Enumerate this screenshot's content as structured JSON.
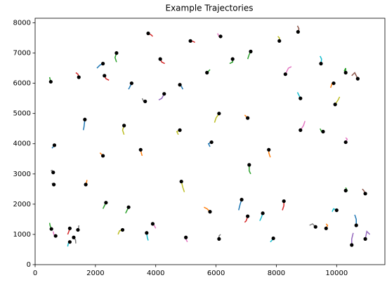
{
  "chart_data": {
    "type": "trajectory",
    "title": "Example Trajectories",
    "xlim": [
      0,
      11600
    ],
    "ylim": [
      0,
      8150
    ],
    "xticks": [
      0,
      2000,
      4000,
      6000,
      8000,
      10000
    ],
    "yticks": [
      0,
      1000,
      2000,
      3000,
      4000,
      5000,
      6000,
      7000,
      8000
    ],
    "endpoint_color": "#000000",
    "series": [
      {
        "color": "#2ca02c",
        "x": [
          480,
          500,
          520
        ],
        "y": [
          6200,
          6120,
          6050
        ]
      },
      {
        "color": "#7f7f7f",
        "x": [
          520,
          560,
          600
        ],
        "y": [
          3100,
          3120,
          3050
        ]
      },
      {
        "color": "#2ca02c",
        "x": [
          480,
          500,
          540
        ],
        "y": [
          1380,
          1280,
          1180
        ]
      },
      {
        "color": "#e377c2",
        "x": [
          600,
          620,
          680
        ],
        "y": [
          1100,
          1000,
          950
        ]
      },
      {
        "color": "#1f77b4",
        "x": [
          560,
          600,
          640
        ],
        "y": [
          3850,
          3900,
          3950
        ]
      },
      {
        "color": "#7f7f7f",
        "x": [
          560,
          590,
          620
        ],
        "y": [
          2700,
          2650,
          2650
        ]
      },
      {
        "color": "#d62728",
        "x": [
          1080,
          1120,
          1150
        ],
        "y": [
          1000,
          1100,
          1200
        ]
      },
      {
        "color": "#17becf",
        "x": [
          1080,
          1100,
          1150
        ],
        "y": [
          600,
          700,
          750
        ]
      },
      {
        "color": "#7f7f7f",
        "x": [
          1350,
          1340,
          1280
        ],
        "y": [
          700,
          820,
          900
        ]
      },
      {
        "color": "#7f7f7f",
        "x": [
          1450,
          1440,
          1420
        ],
        "y": [
          1300,
          1200,
          1150
        ]
      },
      {
        "color": "#d62728",
        "x": [
          1350,
          1420,
          1450
        ],
        "y": [
          6350,
          6300,
          6200
        ]
      },
      {
        "color": "#1f77b4",
        "x": [
          1600,
          1620,
          1650
        ],
        "y": [
          4450,
          4550,
          4800
        ]
      },
      {
        "color": "#ff7f0e",
        "x": [
          1720,
          1700,
          1680
        ],
        "y": [
          2800,
          2700,
          2650
        ]
      },
      {
        "color": "#1f77b4",
        "x": [
          2050,
          2150,
          2250
        ],
        "y": [
          6500,
          6600,
          6650
        ]
      },
      {
        "color": "#d62728",
        "x": [
          2450,
          2350,
          2300
        ],
        "y": [
          6100,
          6150,
          6250
        ]
      },
      {
        "color": "#2ca02c",
        "x": [
          2250,
          2300,
          2350
        ],
        "y": [
          1850,
          1950,
          2050
        ]
      },
      {
        "color": "#ff7f0e",
        "x": [
          2150,
          2200,
          2250
        ],
        "y": [
          3700,
          3650,
          3600
        ]
      },
      {
        "color": "#bcbd22",
        "x": [
          2750,
          2800,
          2900
        ],
        "y": [
          1000,
          1120,
          1150
        ]
      },
      {
        "color": "#2ca02c",
        "x": [
          2700,
          2650,
          2700
        ],
        "y": [
          6700,
          6850,
          7000
        ]
      },
      {
        "color": "#1f77b4",
        "x": [
          3100,
          3150,
          3200
        ],
        "y": [
          5800,
          5900,
          6000
        ]
      },
      {
        "color": "#2ca02c",
        "x": [
          3000,
          3050,
          3100
        ],
        "y": [
          1700,
          1800,
          1900
        ]
      },
      {
        "color": "#bcbd22",
        "x": [
          2950,
          2900,
          2950
        ],
        "y": [
          4300,
          4450,
          4600
        ]
      },
      {
        "color": "#ff7f0e",
        "x": [
          3550,
          3520,
          3500
        ],
        "y": [
          3600,
          3700,
          3800
        ]
      },
      {
        "color": "#17becf",
        "x": [
          3750,
          3720,
          3700
        ],
        "y": [
          800,
          900,
          1050
        ]
      },
      {
        "color": "#7f7f7f",
        "x": [
          3550,
          3600,
          3650
        ],
        "y": [
          5500,
          5400,
          5400
        ]
      },
      {
        "color": "#d62728",
        "x": [
          3900,
          3850,
          3750
        ],
        "y": [
          7550,
          7600,
          7650
        ]
      },
      {
        "color": "#9467bd",
        "x": [
          4100,
          4200,
          4280
        ],
        "y": [
          5450,
          5500,
          5650
        ]
      },
      {
        "color": "#e377c2",
        "x": [
          4000,
          3950,
          3900
        ],
        "y": [
          1200,
          1300,
          1350
        ]
      },
      {
        "color": "#bcbd22",
        "x": [
          4750,
          4700,
          4800
        ],
        "y": [
          4300,
          4400,
          4450
        ]
      },
      {
        "color": "#bcbd22",
        "x": [
          4950,
          4900,
          4850
        ],
        "y": [
          2400,
          2550,
          2750
        ]
      },
      {
        "color": "#d62728",
        "x": [
          4300,
          4200,
          4150
        ],
        "y": [
          6650,
          6700,
          6800
        ]
      },
      {
        "color": "#1f77b4",
        "x": [
          4900,
          4850,
          4800
        ],
        "y": [
          5800,
          5900,
          5950
        ]
      },
      {
        "color": "#e377c2",
        "x": [
          5050,
          5000,
          5000
        ],
        "y": [
          750,
          850,
          900
        ]
      },
      {
        "color": "#d62728",
        "x": [
          5300,
          5250,
          5150
        ],
        "y": [
          7350,
          7380,
          7400
        ]
      },
      {
        "color": "#ff7f0e",
        "x": [
          5600,
          5700,
          5800
        ],
        "y": [
          1900,
          1850,
          1750
        ]
      },
      {
        "color": "#1f77b4",
        "x": [
          5800,
          5750,
          5850
        ],
        "y": [
          3900,
          4000,
          4050
        ]
      },
      {
        "color": "#e377c2",
        "x": [
          6050,
          6100,
          6150
        ],
        "y": [
          7650,
          7550,
          7550
        ]
      },
      {
        "color": "#bcbd22",
        "x": [
          5950,
          6000,
          6100
        ],
        "y": [
          4700,
          4850,
          5000
        ]
      },
      {
        "color": "#2ca02c",
        "x": [
          5800,
          5750,
          5700
        ],
        "y": [
          6450,
          6400,
          6350
        ]
      },
      {
        "color": "#7f7f7f",
        "x": [
          6150,
          6100,
          6100
        ],
        "y": [
          1000,
          950,
          850
        ]
      },
      {
        "color": "#2ca02c",
        "x": [
          6450,
          6550,
          6550
        ],
        "y": [
          6650,
          6700,
          6800
        ]
      },
      {
        "color": "#1f77b4",
        "x": [
          6750,
          6800,
          6850
        ],
        "y": [
          1800,
          2000,
          2150
        ]
      },
      {
        "color": "#d62728",
        "x": [
          6950,
          7000,
          7050
        ],
        "y": [
          1400,
          1450,
          1600
        ]
      },
      {
        "color": "#2ca02c",
        "x": [
          7050,
          7100,
          7150
        ],
        "y": [
          6800,
          6950,
          7050
        ]
      },
      {
        "color": "#ff7f0e",
        "x": [
          6950,
          7000,
          7050
        ],
        "y": [
          4950,
          4900,
          4850
        ]
      },
      {
        "color": "#2ca02c",
        "x": [
          7150,
          7100,
          7100
        ],
        "y": [
          3000,
          3100,
          3300
        ]
      },
      {
        "color": "#17becf",
        "x": [
          7450,
          7500,
          7550
        ],
        "y": [
          1450,
          1550,
          1700
        ]
      },
      {
        "color": "#ff7f0e",
        "x": [
          7800,
          7750,
          7750
        ],
        "y": [
          3550,
          3700,
          3800
        ]
      },
      {
        "color": "#bcbd22",
        "x": [
          8050,
          8100,
          8100
        ],
        "y": [
          7550,
          7500,
          7400
        ]
      },
      {
        "color": "#17becf",
        "x": [
          7800,
          7850,
          7900
        ],
        "y": [
          750,
          800,
          870
        ]
      },
      {
        "color": "#d62728",
        "x": [
          8200,
          8250,
          8250
        ],
        "y": [
          1800,
          1950,
          2100
        ]
      },
      {
        "color": "#e377c2",
        "x": [
          8500,
          8400,
          8300
        ],
        "y": [
          6550,
          6500,
          6300
        ]
      },
      {
        "color": "#17becf",
        "x": [
          8700,
          8750,
          8800
        ],
        "y": [
          5700,
          5600,
          5500
        ]
      },
      {
        "color": "#e377c2",
        "x": [
          8950,
          8900,
          8800
        ],
        "y": [
          4750,
          4600,
          4450
        ]
      },
      {
        "color": "#8c564b",
        "x": [
          8700,
          8750,
          8720
        ],
        "y": [
          7900,
          7800,
          7700
        ]
      },
      {
        "color": "#7f7f7f",
        "x": [
          9100,
          9200,
          9300
        ],
        "y": [
          1300,
          1350,
          1250
        ]
      },
      {
        "color": "#17becf",
        "x": [
          9450,
          9500,
          9480
        ],
        "y": [
          6900,
          6800,
          6650
        ]
      },
      {
        "color": "#2ca02c",
        "x": [
          9450,
          9500,
          9550
        ],
        "y": [
          4500,
          4400,
          4400
        ]
      },
      {
        "color": "#ff7f0e",
        "x": [
          9800,
          9850,
          9900
        ],
        "y": [
          5850,
          6000,
          6000
        ]
      },
      {
        "color": "#bcbd22",
        "x": [
          10100,
          10050,
          9950
        ],
        "y": [
          5550,
          5450,
          5300
        ]
      },
      {
        "color": "#2ca02c",
        "x": [
          10250,
          10300,
          10300
        ],
        "y": [
          6400,
          6500,
          6350
        ]
      },
      {
        "color": "#8c564b",
        "x": [
          10500,
          10600,
          10700
        ],
        "y": [
          6250,
          6350,
          6150
        ]
      },
      {
        "color": "#1f77b4",
        "x": [
          10600,
          10650,
          10650
        ],
        "y": [
          1650,
          1500,
          1300
        ]
      },
      {
        "color": "#9467bd",
        "x": [
          10550,
          10500,
          10500
        ],
        "y": [
          1050,
          850,
          650
        ]
      },
      {
        "color": "#9467bd",
        "x": [
          11100,
          11000,
          10950
        ],
        "y": [
          1000,
          1100,
          850
        ]
      },
      {
        "color": "#8c564b",
        "x": [
          10850,
          10900,
          10950
        ],
        "y": [
          2500,
          2450,
          2350
        ]
      },
      {
        "color": "#e377c2",
        "x": [
          10300,
          10350,
          10300
        ],
        "y": [
          4200,
          4150,
          4050
        ]
      },
      {
        "color": "#17becf",
        "x": [
          9850,
          9900,
          10000
        ],
        "y": [
          1750,
          1850,
          1800
        ]
      },
      {
        "color": "#ff7f0e",
        "x": [
          9650,
          9700,
          9650
        ],
        "y": [
          1350,
          1300,
          1200
        ]
      },
      {
        "color": "#2ca02c",
        "x": [
          10300,
          10350,
          10300
        ],
        "y": [
          2550,
          2450,
          2450
        ]
      }
    ]
  }
}
